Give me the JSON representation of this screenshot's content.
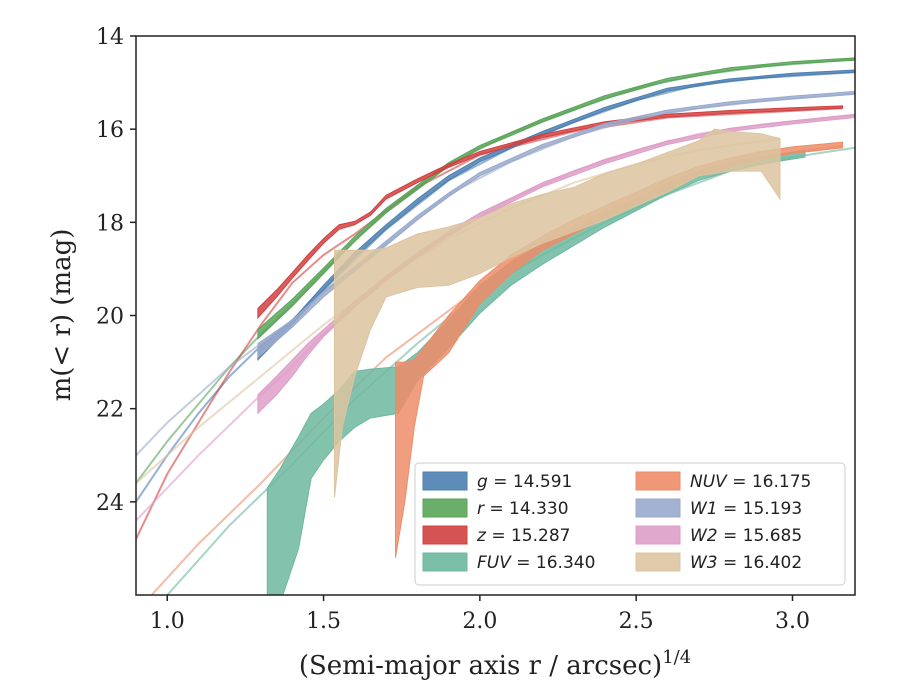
{
  "chart_data": {
    "type": "area",
    "xlabel": "(Semi-major axis r / arcsec)",
    "xlabel_superscript": "1/4",
    "ylabel": "m(< r) (mag)",
    "xlim": [
      0.9,
      3.2
    ],
    "ylim": [
      26.0,
      14.0
    ],
    "y_inverted": true,
    "x_ticks": [
      1.0,
      1.5,
      2.0,
      2.5,
      3.0
    ],
    "x_tick_labels": [
      "1.0",
      "1.5",
      "2.0",
      "2.5",
      "3.0"
    ],
    "y_ticks": [
      14,
      16,
      18,
      20,
      22,
      24
    ],
    "y_tick_labels": [
      "14",
      "16",
      "18",
      "20",
      "22",
      "24"
    ],
    "grid": false,
    "legend": {
      "position": "lower-right",
      "columns": 2
    },
    "series": [
      {
        "name": "g = 14.591",
        "label_var": "g",
        "label_val": "14.591",
        "color": "#4c7fb0",
        "band": [
          [
            1.29,
            20.95,
            20.7
          ],
          [
            1.4,
            20.2,
            20.1
          ],
          [
            1.5,
            19.45,
            19.35
          ],
          [
            1.6,
            18.75,
            18.65
          ],
          [
            1.7,
            18.15,
            18.05
          ],
          [
            1.8,
            17.6,
            17.5
          ],
          [
            1.9,
            17.1,
            17.0
          ],
          [
            2.0,
            16.7,
            16.62
          ],
          [
            2.2,
            16.12,
            16.05
          ],
          [
            2.4,
            15.6,
            15.53
          ],
          [
            2.6,
            15.18,
            15.12
          ],
          [
            2.8,
            14.97,
            14.92
          ],
          [
            3.0,
            14.85,
            14.8
          ],
          [
            3.2,
            14.78,
            14.73
          ]
        ],
        "model": [
          [
            0.9,
            24.0
          ],
          [
            1.0,
            23.0
          ],
          [
            1.1,
            22.1
          ],
          [
            1.2,
            21.3
          ],
          [
            1.3,
            20.65
          ],
          [
            1.4,
            20.1
          ],
          [
            1.5,
            19.45
          ],
          [
            1.7,
            18.15
          ],
          [
            1.9,
            17.1
          ],
          [
            2.1,
            16.4
          ],
          [
            2.3,
            15.85
          ],
          [
            2.5,
            15.38
          ],
          [
            2.7,
            15.05
          ],
          [
            2.9,
            14.9
          ],
          [
            3.2,
            14.78
          ]
        ]
      },
      {
        "name": "r = 14.330",
        "label_var": "r",
        "label_val": "14.330",
        "color": "#5aa55a",
        "band": [
          [
            1.29,
            20.5,
            20.3
          ],
          [
            1.4,
            19.8,
            19.65
          ],
          [
            1.5,
            19.1,
            18.98
          ],
          [
            1.6,
            18.4,
            18.3
          ],
          [
            1.7,
            17.8,
            17.7
          ],
          [
            1.8,
            17.3,
            17.2
          ],
          [
            1.9,
            16.8,
            16.72
          ],
          [
            2.0,
            16.42,
            16.35
          ],
          [
            2.2,
            15.85,
            15.78
          ],
          [
            2.4,
            15.35,
            15.28
          ],
          [
            2.6,
            14.97,
            14.91
          ],
          [
            2.8,
            14.74,
            14.68
          ],
          [
            3.0,
            14.6,
            14.55
          ],
          [
            3.2,
            14.52,
            14.47
          ]
        ],
        "model": [
          [
            0.9,
            23.6
          ],
          [
            1.0,
            22.7
          ],
          [
            1.1,
            21.9
          ],
          [
            1.2,
            21.1
          ],
          [
            1.3,
            20.4
          ],
          [
            1.4,
            19.75
          ],
          [
            1.5,
            19.05
          ],
          [
            1.7,
            17.75
          ],
          [
            1.9,
            16.76
          ],
          [
            2.1,
            16.08
          ],
          [
            2.3,
            15.58
          ],
          [
            2.5,
            15.12
          ],
          [
            2.7,
            14.84
          ],
          [
            2.9,
            14.66
          ],
          [
            3.2,
            14.5
          ]
        ]
      },
      {
        "name": "z = 15.287",
        "label_var": "z",
        "label_val": "15.287",
        "color": "#d24040",
        "band": [
          [
            1.29,
            20.05,
            19.85
          ],
          [
            1.35,
            19.6,
            19.45
          ],
          [
            1.4,
            19.2,
            19.08
          ],
          [
            1.45,
            18.82,
            18.7
          ],
          [
            1.5,
            18.45,
            18.35
          ],
          [
            1.55,
            18.15,
            18.05
          ],
          [
            1.6,
            18.05,
            17.98
          ],
          [
            1.65,
            17.85,
            17.78
          ],
          [
            1.7,
            17.5,
            17.42
          ],
          [
            1.8,
            17.15,
            17.07
          ],
          [
            1.9,
            16.82,
            16.75
          ],
          [
            2.0,
            16.55,
            16.48
          ],
          [
            2.2,
            16.18,
            16.11
          ],
          [
            2.4,
            15.9,
            15.84
          ],
          [
            2.6,
            15.74,
            15.68
          ],
          [
            2.8,
            15.66,
            15.6
          ],
          [
            3.0,
            15.6,
            15.54
          ],
          [
            3.16,
            15.55,
            15.5
          ]
        ],
        "model": [
          [
            0.9,
            24.8
          ],
          [
            1.0,
            23.4
          ],
          [
            1.1,
            22.3
          ],
          [
            1.2,
            21.2
          ],
          [
            1.3,
            20.2
          ],
          [
            1.4,
            19.3
          ],
          [
            1.5,
            18.7
          ],
          [
            1.6,
            18.25
          ],
          [
            1.8,
            17.25
          ],
          [
            2.0,
            16.55
          ],
          [
            2.3,
            16.05
          ],
          [
            2.6,
            15.75
          ],
          [
            3.16,
            15.55
          ]
        ]
      },
      {
        "name": "FUV = 16.340",
        "label_var": "FUV",
        "label_val": "16.340",
        "color": "#6db89f",
        "band": [
          [
            1.32,
            23.7,
            26.5
          ],
          [
            1.36,
            23.3,
            26.2
          ],
          [
            1.42,
            22.6,
            25.0
          ],
          [
            1.46,
            22.1,
            23.5
          ],
          [
            1.5,
            21.9,
            23.1
          ],
          [
            1.55,
            21.6,
            22.7
          ],
          [
            1.6,
            21.2,
            22.4
          ],
          [
            1.65,
            21.15,
            22.2
          ],
          [
            1.74,
            21.1,
            22.1
          ],
          [
            1.8,
            20.8,
            21.4
          ],
          [
            1.9,
            20.1,
            20.7
          ],
          [
            2.0,
            19.35,
            19.95
          ],
          [
            2.1,
            18.85,
            19.35
          ],
          [
            2.2,
            18.45,
            18.9
          ],
          [
            2.3,
            18.15,
            18.5
          ],
          [
            2.4,
            17.8,
            18.1
          ],
          [
            2.5,
            17.5,
            17.75
          ],
          [
            2.6,
            17.15,
            17.4
          ],
          [
            2.7,
            16.9,
            17.1
          ],
          [
            2.8,
            16.7,
            16.9
          ],
          [
            2.9,
            16.6,
            16.75
          ],
          [
            3.04,
            16.45,
            16.6
          ]
        ],
        "model": [
          [
            1.0,
            26.0
          ],
          [
            1.2,
            24.5
          ],
          [
            1.4,
            23.2
          ],
          [
            1.6,
            21.8
          ],
          [
            1.8,
            20.6
          ],
          [
            2.0,
            19.5
          ],
          [
            2.2,
            18.7
          ],
          [
            2.4,
            18.0
          ],
          [
            2.6,
            17.4
          ],
          [
            2.8,
            16.9
          ],
          [
            3.0,
            16.6
          ],
          [
            3.2,
            16.4
          ]
        ]
      },
      {
        "name": "NUV = 16.175",
        "label_var": "NUV",
        "label_val": "16.175",
        "color": "#ee8c68",
        "band": [
          [
            1.73,
            21.0,
            25.2
          ],
          [
            1.76,
            21.0,
            24.0
          ],
          [
            1.79,
            20.95,
            22.4
          ],
          [
            1.82,
            20.7,
            21.3
          ],
          [
            1.9,
            20.0,
            20.8
          ],
          [
            2.0,
            19.25,
            19.75
          ],
          [
            2.1,
            18.7,
            19.1
          ],
          [
            2.2,
            18.3,
            18.6
          ],
          [
            2.3,
            17.95,
            18.25
          ],
          [
            2.4,
            17.65,
            17.9
          ],
          [
            2.5,
            17.35,
            17.6
          ],
          [
            2.6,
            17.05,
            17.3
          ],
          [
            2.7,
            16.8,
            17.0
          ],
          [
            2.8,
            16.62,
            16.8
          ],
          [
            2.9,
            16.48,
            16.64
          ],
          [
            3.0,
            16.38,
            16.52
          ],
          [
            3.16,
            16.28,
            16.4
          ]
        ],
        "model": [
          [
            0.95,
            26.0
          ],
          [
            1.1,
            24.9
          ],
          [
            1.3,
            23.6
          ],
          [
            1.5,
            22.2
          ],
          [
            1.7,
            20.9
          ],
          [
            1.9,
            19.9
          ],
          [
            2.1,
            18.9
          ],
          [
            2.3,
            18.1
          ],
          [
            2.5,
            17.4
          ],
          [
            2.7,
            16.95
          ],
          [
            2.9,
            16.6
          ],
          [
            3.16,
            16.35
          ]
        ]
      },
      {
        "name": "W1 = 15.193",
        "label_var": "W1",
        "label_val": "15.193",
        "color": "#9aaacc",
        "band": [
          [
            1.29,
            20.9,
            20.6
          ],
          [
            1.4,
            20.25,
            20.1
          ],
          [
            1.5,
            19.6,
            19.48
          ],
          [
            1.6,
            19.05,
            18.95
          ],
          [
            1.7,
            18.5,
            18.4
          ],
          [
            1.8,
            17.95,
            17.86
          ],
          [
            1.9,
            17.45,
            17.37
          ],
          [
            2.0,
            17.0,
            16.93
          ],
          [
            2.2,
            16.4,
            16.33
          ],
          [
            2.4,
            15.95,
            15.88
          ],
          [
            2.6,
            15.65,
            15.59
          ],
          [
            2.8,
            15.47,
            15.41
          ],
          [
            3.0,
            15.35,
            15.29
          ],
          [
            3.2,
            15.25,
            15.19
          ]
        ],
        "model": [
          [
            0.9,
            23.0
          ],
          [
            1.0,
            22.3
          ],
          [
            1.1,
            21.7
          ],
          [
            1.2,
            21.1
          ],
          [
            1.3,
            20.6
          ],
          [
            1.4,
            20.1
          ],
          [
            1.5,
            19.5
          ],
          [
            1.7,
            18.45
          ],
          [
            1.9,
            17.4
          ],
          [
            2.1,
            16.7
          ],
          [
            2.3,
            16.15
          ],
          [
            2.5,
            15.78
          ],
          [
            2.7,
            15.55
          ],
          [
            2.9,
            15.4
          ],
          [
            3.2,
            15.24
          ]
        ]
      },
      {
        "name": "W2 = 15.685",
        "label_var": "W2",
        "label_val": "15.685",
        "color": "#de9ec8",
        "band": [
          [
            1.29,
            21.7,
            22.1
          ],
          [
            1.35,
            21.3,
            21.7
          ],
          [
            1.4,
            20.95,
            21.3
          ],
          [
            1.45,
            20.6,
            20.85
          ],
          [
            1.5,
            20.3,
            20.45
          ],
          [
            1.6,
            19.7,
            19.82
          ],
          [
            1.7,
            19.15,
            19.26
          ],
          [
            1.8,
            18.65,
            18.75
          ],
          [
            1.9,
            18.2,
            18.3
          ],
          [
            2.0,
            17.8,
            17.9
          ],
          [
            2.2,
            17.15,
            17.24
          ],
          [
            2.4,
            16.65,
            16.74
          ],
          [
            2.6,
            16.25,
            16.33
          ],
          [
            2.8,
            15.98,
            16.05
          ],
          [
            3.0,
            15.82,
            15.89
          ],
          [
            3.2,
            15.68,
            15.75
          ]
        ],
        "model": [
          [
            0.9,
            24.4
          ],
          [
            1.0,
            23.7
          ],
          [
            1.1,
            23.0
          ],
          [
            1.2,
            22.35
          ],
          [
            1.3,
            21.7
          ],
          [
            1.4,
            21.1
          ],
          [
            1.5,
            20.4
          ],
          [
            1.7,
            19.2
          ],
          [
            1.9,
            18.25
          ],
          [
            2.1,
            17.5
          ],
          [
            2.3,
            16.9
          ],
          [
            2.5,
            16.45
          ],
          [
            2.7,
            16.1
          ],
          [
            2.9,
            15.9
          ],
          [
            3.2,
            15.7
          ]
        ]
      },
      {
        "name": "W3 = 16.402",
        "label_var": "W3",
        "label_val": "16.402",
        "color": "#dcc4a0",
        "band": [
          [
            1.535,
            18.6,
            23.9
          ],
          [
            1.56,
            18.6,
            22.4
          ],
          [
            1.6,
            18.6,
            21.3
          ],
          [
            1.65,
            18.6,
            20.3
          ],
          [
            1.7,
            18.55,
            19.6
          ],
          [
            1.75,
            18.4,
            19.5
          ],
          [
            1.8,
            18.25,
            19.4
          ],
          [
            1.9,
            18.1,
            19.35
          ],
          [
            2.0,
            17.9,
            19.1
          ],
          [
            2.1,
            17.6,
            18.75
          ],
          [
            2.2,
            17.4,
            18.45
          ],
          [
            2.3,
            17.25,
            18.2
          ],
          [
            2.4,
            16.95,
            17.95
          ],
          [
            2.5,
            16.75,
            17.65
          ],
          [
            2.6,
            16.5,
            17.35
          ],
          [
            2.7,
            16.25,
            17.0
          ],
          [
            2.75,
            16.0,
            16.95
          ],
          [
            2.8,
            16.05,
            16.9
          ],
          [
            2.9,
            16.1,
            16.9
          ],
          [
            2.96,
            16.2,
            17.5
          ]
        ],
        "model": [
          [
            0.9,
            23.6
          ],
          [
            1.0,
            23.0
          ],
          [
            1.1,
            22.4
          ],
          [
            1.2,
            21.85
          ],
          [
            1.3,
            21.3
          ],
          [
            1.4,
            20.75
          ],
          [
            1.5,
            20.2
          ],
          [
            1.7,
            19.2
          ],
          [
            1.9,
            18.35
          ],
          [
            2.1,
            17.7
          ],
          [
            2.3,
            17.15
          ],
          [
            2.5,
            16.75
          ],
          [
            2.7,
            16.45
          ],
          [
            2.96,
            16.2
          ]
        ]
      }
    ]
  }
}
